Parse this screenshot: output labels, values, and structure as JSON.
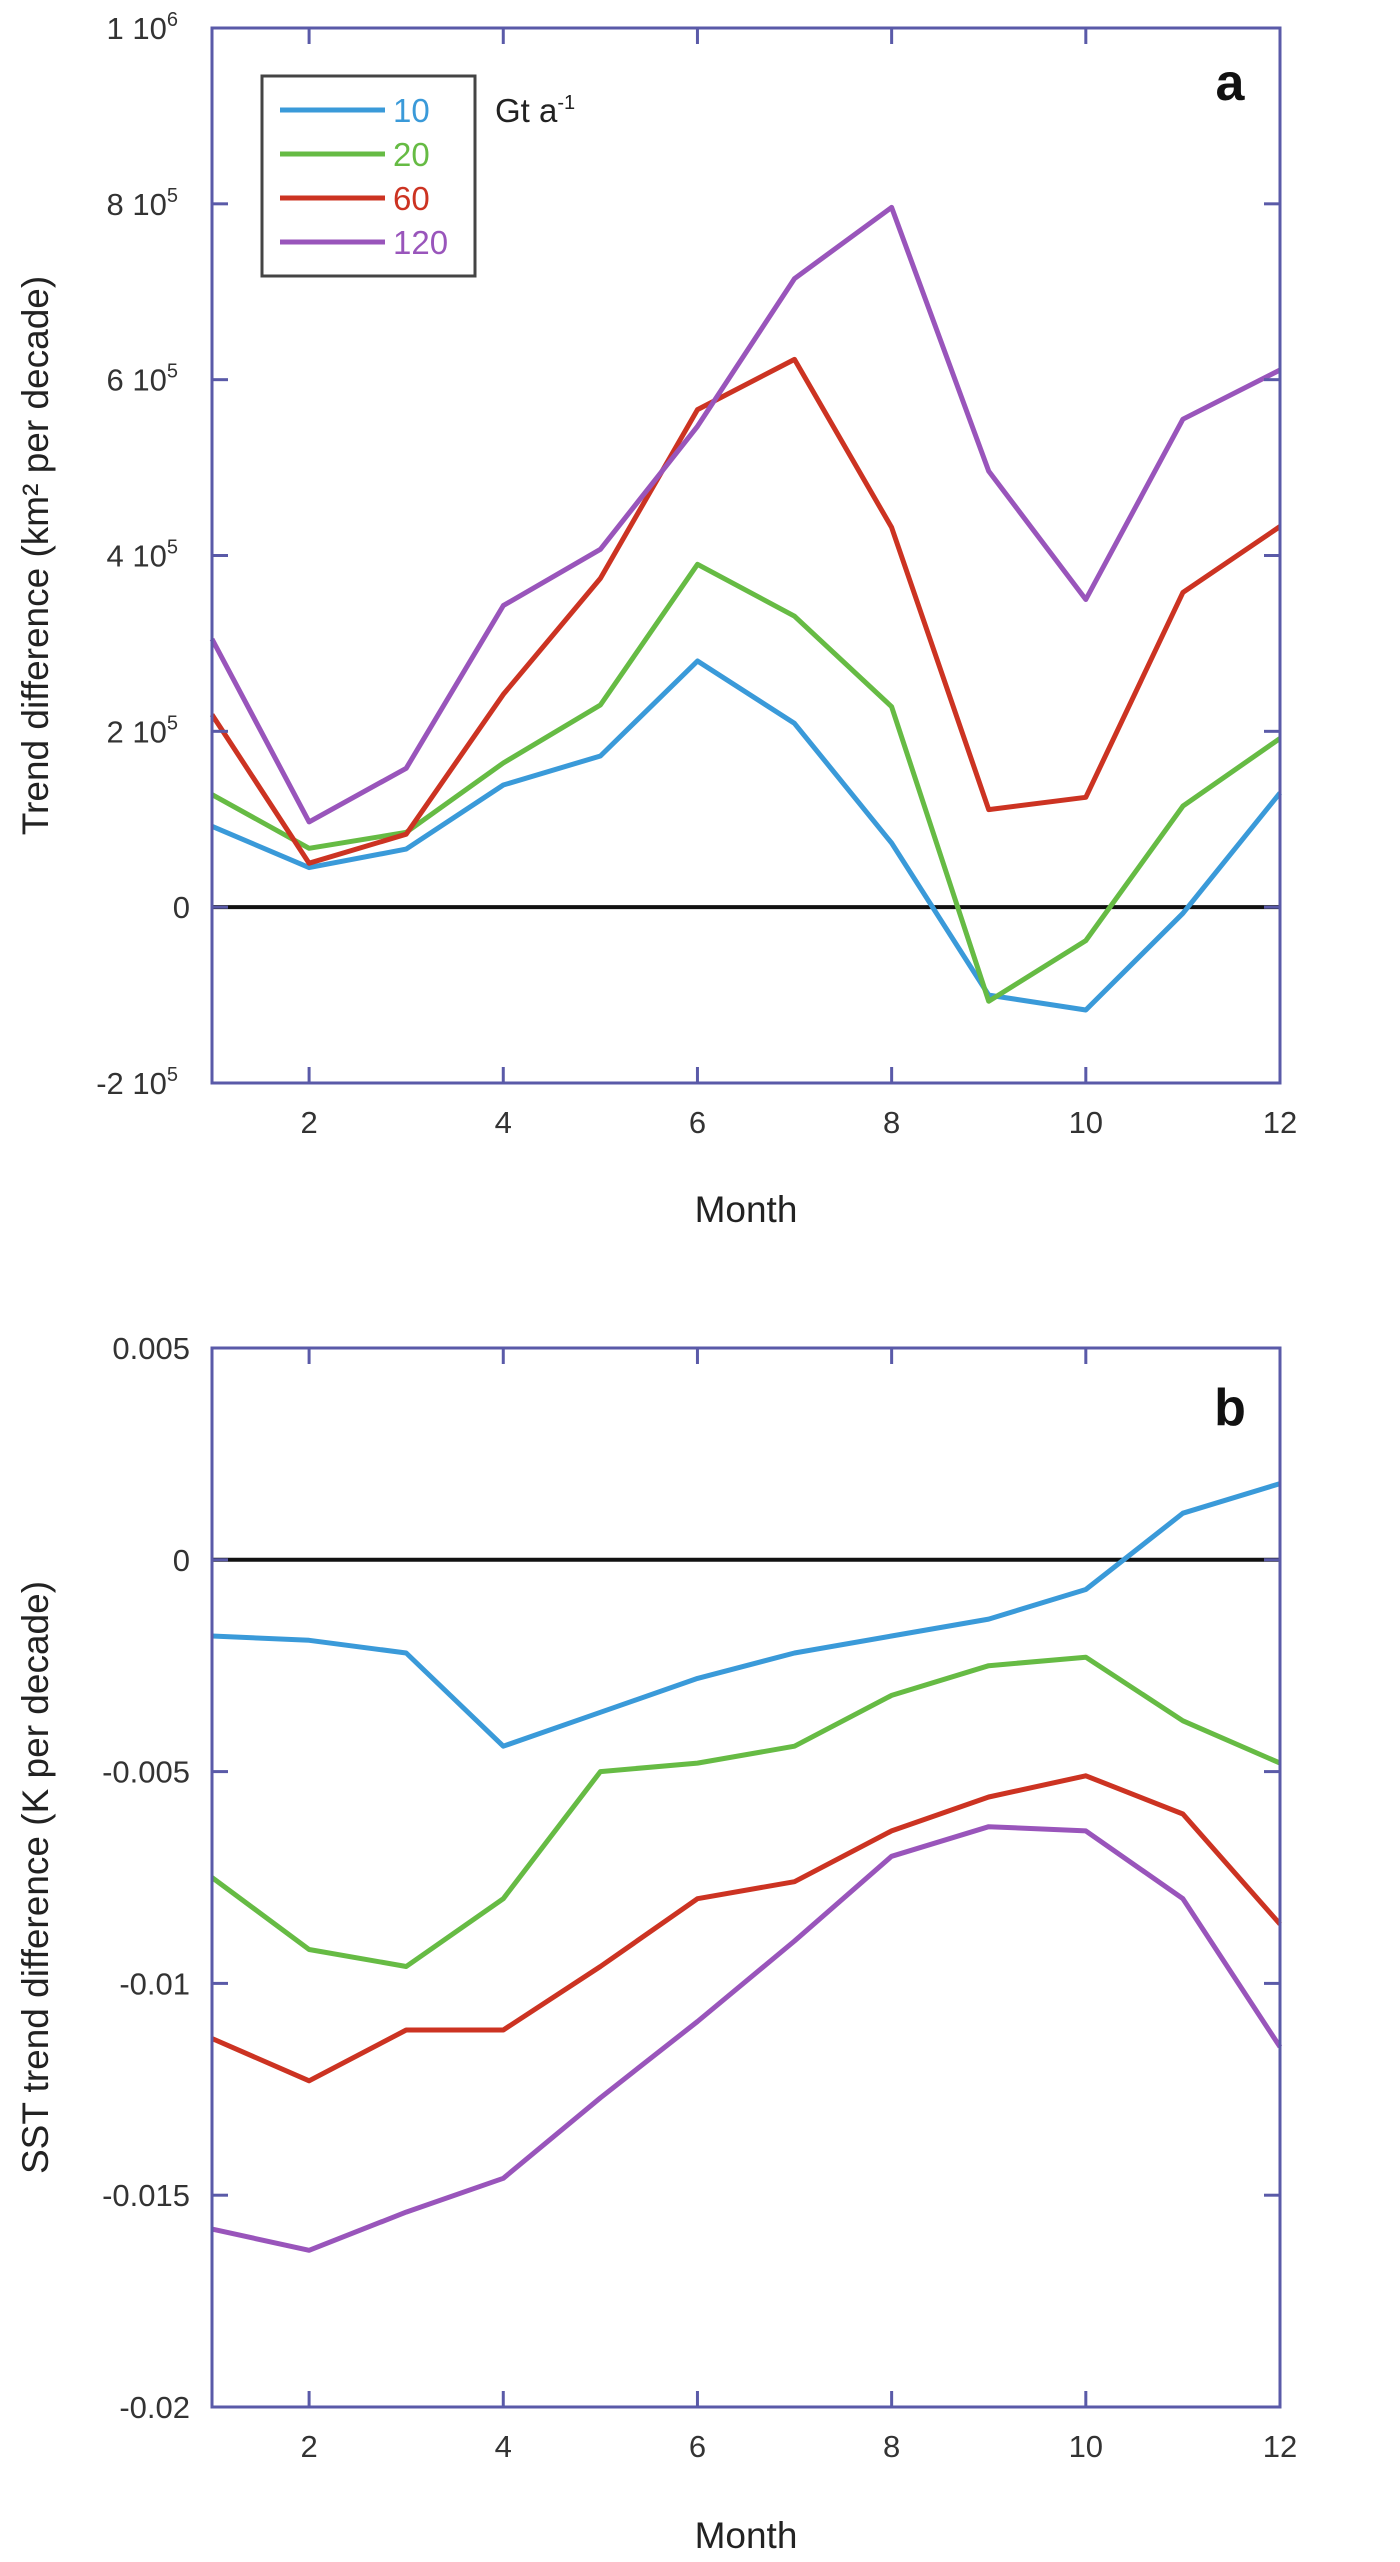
{
  "chart_data": [
    {
      "type": "line",
      "panel": "a",
      "title": "",
      "xlabel": "Month",
      "ylabel": "Trend difference (km² per decade)",
      "xlim": [
        1,
        12
      ],
      "ylim": [
        -200000,
        1000000
      ],
      "x_ticks": [
        2,
        4,
        6,
        8,
        10,
        12
      ],
      "x_tick_labels": [
        "2",
        "4",
        "6",
        "8",
        "10",
        "12"
      ],
      "y_ticks": [
        -200000,
        0,
        200000,
        400000,
        600000,
        800000,
        1000000
      ],
      "y_tick_labels": [
        {
          "mant": "-2 10",
          "exp": "5"
        },
        {
          "mant": "0",
          "exp": ""
        },
        {
          "mant": "2 10",
          "exp": "5"
        },
        {
          "mant": "4 10",
          "exp": "5"
        },
        {
          "mant": "6 10",
          "exp": "5"
        },
        {
          "mant": "8 10",
          "exp": "5"
        },
        {
          "mant": "1 10",
          "exp": "6"
        }
      ],
      "zero_line": true,
      "grid": false,
      "legend": {
        "placement": "top-left",
        "unit_base": "Gt a",
        "unit_exp": "-1"
      },
      "x": [
        1,
        2,
        3,
        4,
        5,
        6,
        7,
        8,
        9,
        10,
        11,
        12
      ],
      "series": [
        {
          "name": "10",
          "color": "#3a9ad9",
          "values": [
            92000,
            45000,
            66000,
            139000,
            172000,
            280000,
            209000,
            73000,
            -100000,
            -117000,
            -7000,
            130000
          ]
        },
        {
          "name": "20",
          "color": "#66bb44",
          "values": [
            128000,
            67000,
            85000,
            164000,
            230000,
            390000,
            331000,
            228000,
            -107000,
            -38000,
            115000,
            192000
          ]
        },
        {
          "name": "60",
          "color": "#cc3322",
          "values": [
            219000,
            50000,
            83000,
            242000,
            374000,
            566000,
            623000,
            432000,
            111000,
            125000,
            358000,
            433000
          ]
        },
        {
          "name": "120",
          "color": "#9955bb",
          "values": [
            305000,
            97000,
            158000,
            343000,
            407000,
            547000,
            715000,
            796000,
            496000,
            350000,
            555000,
            611000
          ]
        }
      ]
    },
    {
      "type": "line",
      "panel": "b",
      "title": "",
      "xlabel": "Month",
      "ylabel": "SST trend difference (K per decade)",
      "xlim": [
        1,
        12
      ],
      "ylim": [
        -0.02,
        0.005
      ],
      "x_ticks": [
        2,
        4,
        6,
        8,
        10,
        12
      ],
      "x_tick_labels": [
        "2",
        "4",
        "6",
        "8",
        "10",
        "12"
      ],
      "y_ticks": [
        -0.02,
        -0.015,
        -0.01,
        -0.005,
        0,
        0.005
      ],
      "y_tick_labels": [
        {
          "mant": "-0.02",
          "exp": ""
        },
        {
          "mant": "-0.015",
          "exp": ""
        },
        {
          "mant": "-0.01",
          "exp": ""
        },
        {
          "mant": "-0.005",
          "exp": ""
        },
        {
          "mant": "0",
          "exp": ""
        },
        {
          "mant": "0.005",
          "exp": ""
        }
      ],
      "zero_line": true,
      "grid": false,
      "x": [
        1,
        2,
        3,
        4,
        5,
        6,
        7,
        8,
        9,
        10,
        11,
        12
      ],
      "series": [
        {
          "name": "10",
          "color": "#3a9ad9",
          "values": [
            -0.0018,
            -0.0019,
            -0.0022,
            -0.0044,
            -0.0036,
            -0.0028,
            -0.0022,
            -0.0018,
            -0.0014,
            -0.0007,
            0.0011,
            0.0018
          ]
        },
        {
          "name": "20",
          "color": "#66bb44",
          "values": [
            -0.0075,
            -0.0092,
            -0.0096,
            -0.008,
            -0.005,
            -0.0048,
            -0.0044,
            -0.0032,
            -0.0025,
            -0.0023,
            -0.0038,
            -0.0048
          ]
        },
        {
          "name": "60",
          "color": "#cc3322",
          "values": [
            -0.0113,
            -0.0123,
            -0.0111,
            -0.0111,
            -0.0096,
            -0.008,
            -0.0076,
            -0.0064,
            -0.0056,
            -0.0051,
            -0.006,
            -0.0086
          ]
        },
        {
          "name": "120",
          "color": "#9955bb",
          "values": [
            -0.0158,
            -0.0163,
            -0.0154,
            -0.0146,
            -0.0127,
            -0.0109,
            -0.009,
            -0.007,
            -0.0063,
            -0.0064,
            -0.008,
            -0.0115
          ]
        }
      ]
    }
  ],
  "figure": {
    "frame_color": "#5a5aa8",
    "zero_line_color": "#111111",
    "legend_frame_color": "#444444"
  }
}
